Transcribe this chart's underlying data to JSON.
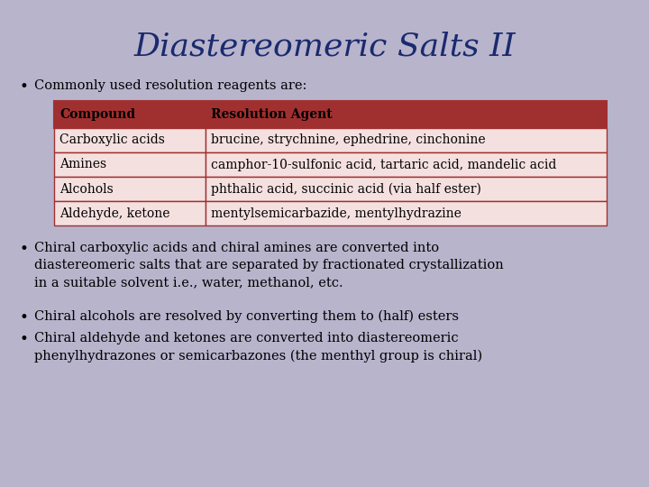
{
  "title": "Diastereomeric Salts II",
  "title_color": "#1a2a6e",
  "title_fontsize": 26,
  "background_color": "#b8b4cc",
  "bullet1": "Commonly used resolution reagents are:",
  "table_header": [
    "Compound",
    "Resolution Agent"
  ],
  "table_rows": [
    [
      "Carboxylic acids",
      "brucine, strychnine, ephedrine, cinchonine"
    ],
    [
      "Amines",
      "camphor-10-sulfonic acid, tartaric acid, mandelic acid"
    ],
    [
      "Alcohols",
      "phthalic acid, succinic acid (via half ester)"
    ],
    [
      "Aldehyde, ketone",
      "mentylsemicarbazide, mentylhydrazine"
    ]
  ],
  "table_header_bg": "#a03030",
  "table_border_color": "#a03030",
  "table_row_bg": "#f5e0e0",
  "bullet2": "Chiral carboxylic acids and chiral amines are converted into\ndiastereomeric salts that are separated by fractionated crystallization\nin a suitable solvent i.e., water, methanol, etc.",
  "bullet3": "Chiral alcohols are resolved by converting them to (half) esters",
  "bullet4": "Chiral aldehyde and ketones are converted into diastereomeric\nphenylhydrazones or semicarbazones (the menthyl group is chiral)",
  "body_text_color": "#000000",
  "body_fontsize": 10.5,
  "table_fontsize": 10
}
